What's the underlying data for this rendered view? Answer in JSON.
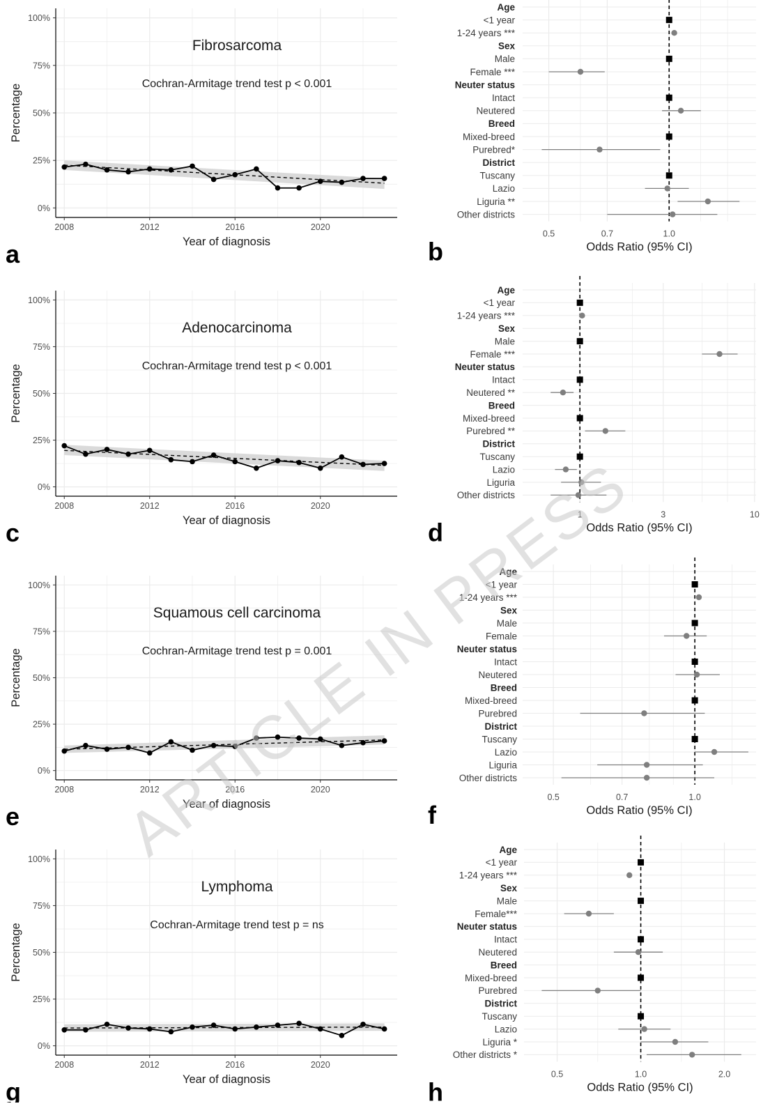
{
  "watermark": "ARTICLE IN PRESS",
  "colors": {
    "line": "#000000",
    "ribbon": "#d4d4d4",
    "grid": "#ebebeb",
    "point_ref": "#000000",
    "point_est": "#7f7f7f"
  },
  "trend_panels": [
    {
      "panel_letter": "a",
      "title": "Fibrosarcoma",
      "test_label": "Cochran-Armitage trend test p < 0.001",
      "ylabel": "Percentage",
      "xlabel": "Year of diagnosis",
      "x_ticks": [
        "2008",
        "2012",
        "2016",
        "2020"
      ],
      "y_ticks": [
        "0%",
        "25%",
        "50%",
        "75%",
        "100%"
      ],
      "chart_data": {
        "type": "line",
        "title": "Fibrosarcoma",
        "xlabel": "Year of diagnosis",
        "ylabel": "Percentage",
        "ylim": [
          0,
          100
        ],
        "x": [
          2008,
          2009,
          2010,
          2011,
          2012,
          2013,
          2014,
          2015,
          2016,
          2017,
          2018,
          2019,
          2020,
          2021,
          2022,
          2023
        ],
        "values": [
          21.5,
          23,
          20,
          19,
          20.5,
          20,
          22,
          15,
          17.5,
          20.5,
          10.5,
          10.5,
          14,
          13.5,
          15.5,
          15.5
        ],
        "trend": {
          "start": 22.5,
          "end": 13
        },
        "ribbon": {
          "start": [
            20,
            25
          ],
          "end": [
            10,
            15.5
          ]
        }
      }
    },
    {
      "panel_letter": "c",
      "title": "Adenocarcinoma",
      "test_label": "Cochran-Armitage trend test p < 0.001",
      "ylabel": "Percentage",
      "xlabel": "Year of diagnosis",
      "x_ticks": [
        "2008",
        "2012",
        "2016",
        "2020"
      ],
      "y_ticks": [
        "0%",
        "25%",
        "50%",
        "75%",
        "100%"
      ],
      "chart_data": {
        "type": "line",
        "title": "Adenocarcinoma",
        "xlabel": "Year of diagnosis",
        "ylabel": "Percentage",
        "ylim": [
          0,
          100
        ],
        "x": [
          2008,
          2009,
          2010,
          2011,
          2012,
          2013,
          2014,
          2015,
          2016,
          2017,
          2018,
          2019,
          2020,
          2021,
          2022,
          2023
        ],
        "values": [
          22,
          17.5,
          20,
          17.5,
          19.5,
          14.5,
          13.5,
          17,
          13.5,
          10,
          14,
          13,
          10,
          16,
          12,
          12.5
        ],
        "trend": {
          "start": 19.5,
          "end": 11.5
        },
        "ribbon": {
          "start": [
            17,
            22.5
          ],
          "end": [
            8.5,
            14
          ]
        }
      }
    },
    {
      "panel_letter": "e",
      "title": "Squamous cell carcinoma",
      "test_label": "Cochran-Armitage trend test p = 0.001",
      "ylabel": "Percentage",
      "xlabel": "Year of diagnosis",
      "x_ticks": [
        "2008",
        "2012",
        "2016",
        "2020"
      ],
      "y_ticks": [
        "0%",
        "25%",
        "50%",
        "75%",
        "100%"
      ],
      "chart_data": {
        "type": "line",
        "title": "Squamous cell carcinoma",
        "xlabel": "Year of diagnosis",
        "ylabel": "Percentage",
        "ylim": [
          0,
          100
        ],
        "x": [
          2008,
          2009,
          2010,
          2011,
          2012,
          2013,
          2014,
          2015,
          2016,
          2017,
          2018,
          2019,
          2020,
          2021,
          2022,
          2023
        ],
        "values": [
          10.5,
          13.5,
          11.5,
          12.5,
          9.5,
          15.5,
          11,
          13.5,
          13,
          17.5,
          18,
          17.5,
          17,
          13.5,
          15,
          16
        ],
        "trend": {
          "start": 11.5,
          "end": 16.5
        },
        "ribbon": {
          "start": [
            9.5,
            13.5
          ],
          "end": [
            14,
            19
          ]
        }
      }
    },
    {
      "panel_letter": "g",
      "title": "Lymphoma",
      "test_label": "Cochran-Armitage trend test p = ns",
      "ylabel": "Percentage",
      "xlabel": "Year of diagnosis",
      "x_ticks": [
        "2008",
        "2012",
        "2016",
        "2020"
      ],
      "y_ticks": [
        "0%",
        "25%",
        "50%",
        "75%",
        "100%"
      ],
      "chart_data": {
        "type": "line",
        "title": "Lymphoma",
        "xlabel": "Year of diagnosis",
        "ylabel": "Percentage",
        "ylim": [
          0,
          100
        ],
        "x": [
          2008,
          2009,
          2010,
          2011,
          2012,
          2013,
          2014,
          2015,
          2016,
          2017,
          2018,
          2019,
          2020,
          2021,
          2022,
          2023
        ],
        "values": [
          8.5,
          8.5,
          11.5,
          9.5,
          9,
          7.5,
          10,
          11,
          9,
          10,
          11,
          12,
          9,
          5.5,
          11.5,
          9
        ],
        "trend": {
          "start": 9.5,
          "end": 10
        },
        "ribbon": {
          "start": [
            7.5,
            11.5
          ],
          "end": [
            8,
            12
          ]
        }
      }
    }
  ],
  "forest_panels": [
    {
      "panel_letter": "b",
      "xlabel": "Odds Ratio (95% CI)",
      "chart_data": {
        "type": "scatter",
        "xlabel": "Odds Ratio (95% CI)",
        "x_scale": "log",
        "xlim": [
          0.43,
          1.65
        ],
        "x_ticks": [
          {
            "value": 0.5,
            "label": "0.5"
          },
          {
            "value": 0.7,
            "label": "0.7"
          },
          {
            "value": 1.0,
            "label": "1.0"
          }
        ],
        "x_grid": [
          0.6,
          1.2,
          1.4
        ],
        "reference_line": 1,
        "rows": [
          {
            "label": "Age",
            "header": true
          },
          {
            "label": "<1 year",
            "or": 1,
            "ref": true
          },
          {
            "label": "1-24 years ***",
            "or": 1.03,
            "ci": [
              1.02,
              1.04
            ]
          },
          {
            "label": "Sex",
            "header": true
          },
          {
            "label": "Male",
            "or": 1,
            "ref": true
          },
          {
            "label": "Female ***",
            "or": 0.6,
            "ci": [
              0.5,
              0.69
            ]
          },
          {
            "label": "Neuter status",
            "header": true
          },
          {
            "label": "Intact",
            "or": 1,
            "ref": true
          },
          {
            "label": "Neutered",
            "or": 1.07,
            "ci": [
              0.96,
              1.2
            ]
          },
          {
            "label": "Breed",
            "header": true
          },
          {
            "label": "Mixed-breed",
            "or": 1,
            "ref": true
          },
          {
            "label": "Purebred*",
            "or": 0.67,
            "ci": [
              0.48,
              0.95
            ]
          },
          {
            "label": "District",
            "header": true
          },
          {
            "label": "Tuscany",
            "or": 1,
            "ref": true
          },
          {
            "label": "Lazio",
            "or": 0.99,
            "ci": [
              0.87,
              1.12
            ]
          },
          {
            "label": "Liguria **",
            "or": 1.25,
            "ci": [
              1.05,
              1.5
            ]
          },
          {
            "label": "Other districts",
            "or": 1.02,
            "ci": [
              0.7,
              1.32
            ]
          }
        ]
      }
    },
    {
      "panel_letter": "d",
      "xlabel": "Odds Ratio (95% CI)",
      "chart_data": {
        "type": "scatter",
        "xlabel": "Odds Ratio (95% CI)",
        "x_scale": "log",
        "xlim": [
          0.47,
          10.2
        ],
        "x_ticks": [
          {
            "value": 1,
            "label": "1"
          },
          {
            "value": 3,
            "label": "3"
          },
          {
            "value": 10,
            "label": "10"
          }
        ],
        "x_grid": [
          2,
          5,
          7
        ],
        "reference_line": 1,
        "rows": [
          {
            "label": "Age",
            "header": true
          },
          {
            "label": "<1 year",
            "or": 1,
            "ref": true
          },
          {
            "label": "1-24 years ***",
            "or": 1.03,
            "ci": [
              1.02,
              1.04
            ]
          },
          {
            "label": "Sex",
            "header": true
          },
          {
            "label": "Male",
            "or": 1,
            "ref": true
          },
          {
            "label": "Female ***",
            "or": 6.3,
            "ci": [
              5.0,
              8.0
            ]
          },
          {
            "label": "Neuter status",
            "header": true
          },
          {
            "label": "Intact",
            "or": 1,
            "ref": true
          },
          {
            "label": "Neutered **",
            "or": 0.8,
            "ci": [
              0.68,
              0.92
            ]
          },
          {
            "label": "Breed",
            "header": true
          },
          {
            "label": "Mixed-breed",
            "or": 1,
            "ref": true
          },
          {
            "label": "Purebred **",
            "or": 1.4,
            "ci": [
              1.07,
              1.82
            ]
          },
          {
            "label": "District",
            "header": true
          },
          {
            "label": "Tuscany",
            "or": 1,
            "ref": true
          },
          {
            "label": "Lazio",
            "or": 0.83,
            "ci": [
              0.72,
              0.96
            ]
          },
          {
            "label": "Liguria",
            "or": 1.02,
            "ci": [
              0.78,
              1.32
            ]
          },
          {
            "label": "Other districts",
            "or": 0.98,
            "ci": [
              0.68,
              1.42
            ]
          }
        ]
      }
    },
    {
      "panel_letter": "f",
      "xlabel": "Odds Ratio (95% CI)",
      "chart_data": {
        "type": "scatter",
        "xlabel": "Odds Ratio (95% CI)",
        "x_scale": "log",
        "xlim": [
          0.43,
          1.35
        ],
        "x_ticks": [
          {
            "value": 0.5,
            "label": "0.5"
          },
          {
            "value": 0.7,
            "label": "0.7"
          },
          {
            "value": 1.0,
            "label": "1.0"
          }
        ],
        "x_grid": [
          0.6,
          0.8,
          0.9,
          1.2
        ],
        "reference_line": 1,
        "rows": [
          {
            "label": "Age",
            "header": true
          },
          {
            "label": "<1 year",
            "or": 1,
            "ref": true
          },
          {
            "label": "1-24 years ***",
            "or": 1.02,
            "ci": [
              1.01,
              1.03
            ]
          },
          {
            "label": "Sex",
            "header": true
          },
          {
            "label": "Male",
            "or": 1,
            "ref": true
          },
          {
            "label": "Female",
            "or": 0.96,
            "ci": [
              0.86,
              1.06
            ]
          },
          {
            "label": "Neuter status",
            "header": true
          },
          {
            "label": "Intact",
            "or": 1,
            "ref": true
          },
          {
            "label": "Neutered",
            "or": 1.01,
            "ci": [
              0.91,
              1.13
            ]
          },
          {
            "label": "Breed",
            "header": true
          },
          {
            "label": "Mixed-breed",
            "or": 1,
            "ref": true
          },
          {
            "label": "Purebred",
            "or": 0.78,
            "ci": [
              0.57,
              1.05
            ]
          },
          {
            "label": "District",
            "header": true
          },
          {
            "label": "Tuscany",
            "or": 1,
            "ref": true
          },
          {
            "label": "Lazio",
            "or": 1.1,
            "ci": [
              1.0,
              1.3
            ]
          },
          {
            "label": "Liguria",
            "or": 0.79,
            "ci": [
              0.62,
              1.04
            ]
          },
          {
            "label": "Other districts",
            "or": 0.79,
            "ci": [
              0.52,
              1.1
            ]
          }
        ]
      }
    },
    {
      "panel_letter": "h",
      "xlabel": "Odds Ratio (95% CI)",
      "chart_data": {
        "type": "scatter",
        "xlabel": "Odds Ratio (95% CI)",
        "x_scale": "log",
        "xlim": [
          0.38,
          2.6
        ],
        "x_ticks": [
          {
            "value": 0.5,
            "label": "0.5"
          },
          {
            "value": 1.0,
            "label": "1.0"
          },
          {
            "value": 2.0,
            "label": "2.0"
          }
        ],
        "x_grid": [
          0.7,
          1.4
        ],
        "reference_line": 1,
        "rows": [
          {
            "label": "Age",
            "header": true
          },
          {
            "label": "<1 year",
            "or": 1,
            "ref": true
          },
          {
            "label": "1-24 years ***",
            "or": 0.91,
            "ci": [
              0.89,
              0.93
            ]
          },
          {
            "label": "Sex",
            "header": true
          },
          {
            "label": "Male",
            "or": 1,
            "ref": true
          },
          {
            "label": "Female***",
            "or": 0.65,
            "ci": [
              0.53,
              0.8
            ]
          },
          {
            "label": "Neuter status",
            "header": true
          },
          {
            "label": "Intact",
            "or": 1,
            "ref": true
          },
          {
            "label": "Neutered",
            "or": 0.98,
            "ci": [
              0.8,
              1.2
            ]
          },
          {
            "label": "Breed",
            "header": true
          },
          {
            "label": "Mixed-breed",
            "or": 1,
            "ref": true
          },
          {
            "label": "Purebred",
            "or": 0.7,
            "ci": [
              0.44,
              1.0
            ]
          },
          {
            "label": "District",
            "header": true
          },
          {
            "label": "Tuscany",
            "or": 1,
            "ref": true
          },
          {
            "label": "Lazio",
            "or": 1.03,
            "ci": [
              0.83,
              1.28
            ]
          },
          {
            "label": "Liguria *",
            "or": 1.33,
            "ci": [
              1.0,
              1.75
            ]
          },
          {
            "label": "Other districts *",
            "or": 1.53,
            "ci": [
              1.05,
              2.3
            ]
          }
        ]
      }
    }
  ]
}
